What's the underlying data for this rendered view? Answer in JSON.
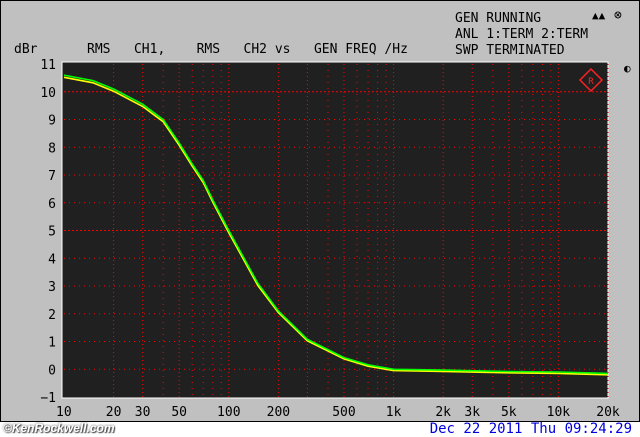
{
  "status": {
    "line1": "GEN RUNNING",
    "line2": "ANL 1:TERM 2:TERM",
    "line3": "SWP TERMINATED"
  },
  "icons": [
    "speaker-icon",
    "mute-icon",
    "contrast-icon",
    "rs-logo"
  ],
  "footer": {
    "watermark": "©KenRockwell.com",
    "date": "Dec 22 2011 Thu 09:24:29"
  },
  "colors": {
    "background": "#c0c0c0",
    "plot": "#202020",
    "grid": "#ff0000",
    "trace_ch1": "#ffff00",
    "trace_ch2": "#00ff00",
    "trace_alt": "#00e0ff"
  },
  "chart_data": {
    "type": "line",
    "title": "RMS   CH1,    RMS   CH2 vs   GEN FREQ /Hz",
    "ylabel": "dBr",
    "xlabel": "",
    "xscale": "log",
    "xlim": [
      10,
      20000
    ],
    "ylim": [
      -1,
      11
    ],
    "grid": true,
    "x_ticks": [
      10,
      20,
      30,
      50,
      100,
      200,
      500,
      1000,
      2000,
      3000,
      5000,
      10000,
      20000
    ],
    "x_tick_labels": [
      "10",
      "20",
      "30",
      "50",
      "100",
      "200",
      "500",
      "1k",
      "2k",
      "3k",
      "5k",
      "10k",
      "20k"
    ],
    "y_ticks": [
      11,
      10,
      9,
      8,
      7,
      6,
      5,
      4,
      3,
      2,
      1,
      0,
      -1
    ],
    "y_tick_labels": [
      "11",
      "10",
      "9",
      "8",
      "7",
      "6",
      "5",
      "4",
      "3",
      "2",
      "1",
      "0",
      "−1"
    ],
    "x": [
      10,
      15,
      20,
      30,
      40,
      50,
      60,
      70,
      80,
      100,
      150,
      200,
      300,
      500,
      700,
      1000,
      2000,
      5000,
      10000,
      20000
    ],
    "series": [
      {
        "values": [
          10.6,
          10.4,
          10.1,
          9.55,
          9.0,
          8.15,
          7.4,
          6.8,
          6.1,
          5.0,
          3.1,
          2.1,
          1.08,
          0.42,
          0.16,
          0.0,
          -0.03,
          -0.08,
          -0.1,
          -0.15
        ]
      },
      {
        "values": [
          10.55,
          10.35,
          10.05,
          9.5,
          8.95,
          8.1,
          7.35,
          6.75,
          6.05,
          4.95,
          3.05,
          2.07,
          1.05,
          0.4,
          0.14,
          -0.02,
          -0.05,
          -0.1,
          -0.12,
          -0.17
        ]
      }
    ]
  }
}
